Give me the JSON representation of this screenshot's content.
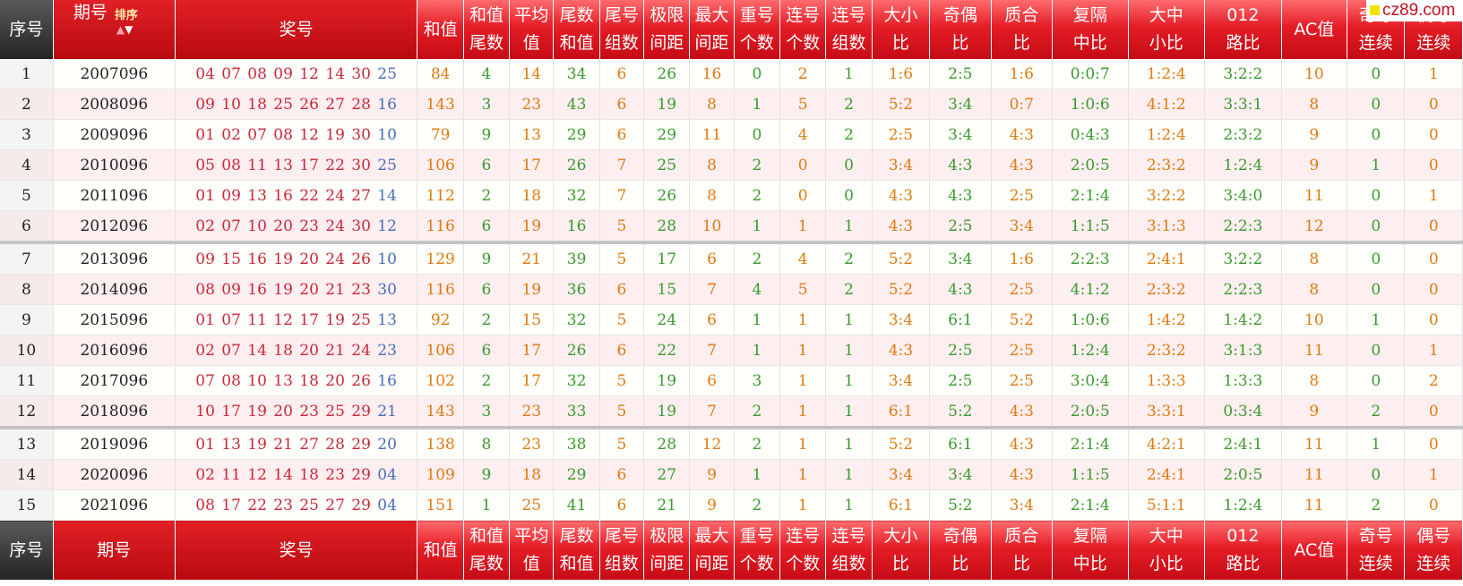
{
  "header": {
    "seq": "序号",
    "issue": "期号",
    "sort_label": "排序",
    "numbers": "奖号",
    "cols": [
      [
        "和值"
      ],
      [
        "和值",
        "尾数"
      ],
      [
        "平均",
        "值"
      ],
      [
        "尾数",
        "和值"
      ],
      [
        "尾号",
        "组数"
      ],
      [
        "极限",
        "间距"
      ],
      [
        "最大",
        "间距"
      ],
      [
        "重号",
        "个数"
      ],
      [
        "连号",
        "个数"
      ],
      [
        "连号",
        "组数"
      ],
      [
        "大小",
        "比"
      ],
      [
        "奇偶",
        "比"
      ],
      [
        "质合",
        "比"
      ],
      [
        "复隔",
        "中比"
      ],
      [
        "大中",
        "小比"
      ],
      [
        "012",
        "路比"
      ],
      [
        "AC值"
      ],
      [
        "奇号",
        "连续"
      ],
      [
        "偶号",
        "连续"
      ]
    ]
  },
  "watermark": "cz89.com",
  "rows": [
    {
      "seq": "1",
      "issue": "2007096",
      "reds": [
        "04",
        "07",
        "08",
        "09",
        "12",
        "14",
        "30"
      ],
      "blue": "25",
      "vals": [
        "84",
        "4",
        "14",
        "34",
        "6",
        "26",
        "16",
        "0",
        "2",
        "1",
        "1:6",
        "2:5",
        "1:6",
        "0:0:7",
        "1:2:4",
        "3:2:2",
        "10",
        "0",
        "1"
      ]
    },
    {
      "seq": "2",
      "issue": "2008096",
      "reds": [
        "09",
        "10",
        "18",
        "25",
        "26",
        "27",
        "28"
      ],
      "blue": "16",
      "vals": [
        "143",
        "3",
        "23",
        "43",
        "6",
        "19",
        "8",
        "1",
        "5",
        "2",
        "5:2",
        "3:4",
        "0:7",
        "1:0:6",
        "4:1:2",
        "3:3:1",
        "8",
        "0",
        "0"
      ]
    },
    {
      "seq": "3",
      "issue": "2009096",
      "reds": [
        "01",
        "02",
        "07",
        "08",
        "12",
        "19",
        "30"
      ],
      "blue": "10",
      "vals": [
        "79",
        "9",
        "13",
        "29",
        "6",
        "29",
        "11",
        "0",
        "4",
        "2",
        "2:5",
        "3:4",
        "4:3",
        "0:4:3",
        "1:2:4",
        "2:3:2",
        "9",
        "0",
        "0"
      ]
    },
    {
      "seq": "4",
      "issue": "2010096",
      "reds": [
        "05",
        "08",
        "11",
        "13",
        "17",
        "22",
        "30"
      ],
      "blue": "25",
      "vals": [
        "106",
        "6",
        "17",
        "26",
        "7",
        "25",
        "8",
        "2",
        "0",
        "0",
        "3:4",
        "4:3",
        "4:3",
        "2:0:5",
        "2:3:2",
        "1:2:4",
        "9",
        "1",
        "0"
      ]
    },
    {
      "seq": "5",
      "issue": "2011096",
      "reds": [
        "01",
        "09",
        "13",
        "16",
        "22",
        "24",
        "27"
      ],
      "blue": "14",
      "vals": [
        "112",
        "2",
        "18",
        "32",
        "7",
        "26",
        "8",
        "2",
        "0",
        "0",
        "4:3",
        "4:3",
        "2:5",
        "2:1:4",
        "3:2:2",
        "3:4:0",
        "11",
        "0",
        "1"
      ]
    },
    {
      "seq": "6",
      "issue": "2012096",
      "reds": [
        "02",
        "07",
        "10",
        "20",
        "23",
        "24",
        "30"
      ],
      "blue": "12",
      "vals": [
        "116",
        "6",
        "19",
        "16",
        "5",
        "28",
        "10",
        "1",
        "1",
        "1",
        "4:3",
        "2:5",
        "3:4",
        "1:1:5",
        "3:1:3",
        "2:2:3",
        "12",
        "0",
        "0"
      ]
    },
    {
      "seq": "7",
      "issue": "2013096",
      "reds": [
        "09",
        "15",
        "16",
        "19",
        "20",
        "24",
        "26"
      ],
      "blue": "10",
      "vals": [
        "129",
        "9",
        "21",
        "39",
        "5",
        "17",
        "6",
        "2",
        "4",
        "2",
        "5:2",
        "3:4",
        "1:6",
        "2:2:3",
        "2:4:1",
        "3:2:2",
        "8",
        "0",
        "0"
      ]
    },
    {
      "seq": "8",
      "issue": "2014096",
      "reds": [
        "08",
        "09",
        "16",
        "19",
        "20",
        "21",
        "23"
      ],
      "blue": "30",
      "vals": [
        "116",
        "6",
        "19",
        "36",
        "6",
        "15",
        "7",
        "4",
        "5",
        "2",
        "5:2",
        "4:3",
        "2:5",
        "4:1:2",
        "2:3:2",
        "2:2:3",
        "8",
        "0",
        "0"
      ]
    },
    {
      "seq": "9",
      "issue": "2015096",
      "reds": [
        "01",
        "07",
        "11",
        "12",
        "17",
        "19",
        "25"
      ],
      "blue": "13",
      "vals": [
        "92",
        "2",
        "15",
        "32",
        "5",
        "24",
        "6",
        "1",
        "1",
        "1",
        "3:4",
        "6:1",
        "5:2",
        "1:0:6",
        "1:4:2",
        "1:4:2",
        "10",
        "1",
        "0"
      ]
    },
    {
      "seq": "10",
      "issue": "2016096",
      "reds": [
        "02",
        "07",
        "14",
        "18",
        "20",
        "21",
        "24"
      ],
      "blue": "23",
      "vals": [
        "106",
        "6",
        "17",
        "26",
        "6",
        "22",
        "7",
        "1",
        "1",
        "1",
        "4:3",
        "2:5",
        "2:5",
        "1:2:4",
        "2:3:2",
        "3:1:3",
        "11",
        "0",
        "1"
      ]
    },
    {
      "seq": "11",
      "issue": "2017096",
      "reds": [
        "07",
        "08",
        "10",
        "13",
        "18",
        "20",
        "26"
      ],
      "blue": "16",
      "vals": [
        "102",
        "2",
        "17",
        "32",
        "5",
        "19",
        "6",
        "3",
        "1",
        "1",
        "3:4",
        "2:5",
        "2:5",
        "3:0:4",
        "1:3:3",
        "1:3:3",
        "8",
        "0",
        "2"
      ]
    },
    {
      "seq": "12",
      "issue": "2018096",
      "reds": [
        "10",
        "17",
        "19",
        "20",
        "23",
        "25",
        "29"
      ],
      "blue": "21",
      "vals": [
        "143",
        "3",
        "23",
        "33",
        "5",
        "19",
        "7",
        "2",
        "1",
        "1",
        "6:1",
        "5:2",
        "4:3",
        "2:0:5",
        "3:3:1",
        "0:3:4",
        "9",
        "2",
        "0"
      ]
    },
    {
      "seq": "13",
      "issue": "2019096",
      "reds": [
        "01",
        "13",
        "19",
        "21",
        "27",
        "28",
        "29"
      ],
      "blue": "20",
      "vals": [
        "138",
        "8",
        "23",
        "38",
        "5",
        "28",
        "12",
        "2",
        "1",
        "1",
        "5:2",
        "6:1",
        "4:3",
        "2:1:4",
        "4:2:1",
        "2:4:1",
        "11",
        "1",
        "0"
      ]
    },
    {
      "seq": "14",
      "issue": "2020096",
      "reds": [
        "02",
        "11",
        "12",
        "14",
        "18",
        "23",
        "29"
      ],
      "blue": "04",
      "vals": [
        "109",
        "9",
        "18",
        "29",
        "6",
        "27",
        "9",
        "1",
        "1",
        "1",
        "3:4",
        "3:4",
        "4:3",
        "1:1:5",
        "2:4:1",
        "2:0:5",
        "11",
        "0",
        "1"
      ]
    },
    {
      "seq": "15",
      "issue": "2021096",
      "reds": [
        "08",
        "17",
        "22",
        "23",
        "25",
        "27",
        "29"
      ],
      "blue": "04",
      "vals": [
        "151",
        "1",
        "25",
        "41",
        "6",
        "21",
        "9",
        "2",
        "1",
        "1",
        "6:1",
        "5:2",
        "3:4",
        "2:1:4",
        "5:1:1",
        "1:2:4",
        "11",
        "2",
        "0"
      ]
    }
  ],
  "colors": {
    "red_ball": "#c8283a",
    "blue_ball": "#4a6db8",
    "orange": "#e07a10",
    "green": "#3a9a2e",
    "header_red": "#e51d27"
  }
}
